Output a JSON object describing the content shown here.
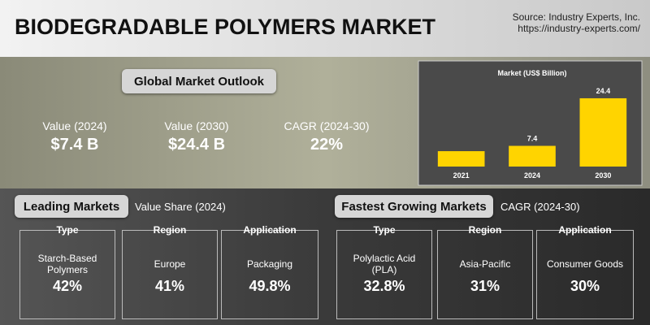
{
  "header": {
    "title": "BIODEGRADABLE POLYMERS MARKET",
    "source": "Source: Industry Experts, Inc.",
    "url": "https://industry-experts.com/"
  },
  "outlook": {
    "title": "Global Market Outlook",
    "stats": [
      {
        "label": "Value (2024)",
        "value": "$7.4 B"
      },
      {
        "label": "Value (2030)",
        "value": "$24.4 B"
      },
      {
        "label": "CAGR (2024-30)",
        "value": "22%"
      }
    ]
  },
  "chart_data": {
    "type": "bar",
    "title": "Market (US$ Billion)",
    "categories": [
      "2021",
      "2024",
      "2030"
    ],
    "values": [
      5.5,
      7.4,
      24.4
    ],
    "value_labels": [
      null,
      "7.4",
      "24.4"
    ],
    "color": "#ffd400",
    "ylim": [
      0,
      27
    ]
  },
  "leading": {
    "title": "Leading Markets",
    "subtitle": "Value Share (2024)",
    "cards": [
      {
        "label": "Type",
        "name": "Starch-Based Polymers",
        "value": "42%"
      },
      {
        "label": "Region",
        "name": "Europe",
        "value": "41%"
      },
      {
        "label": "Application",
        "name": "Packaging",
        "value": "49.8%"
      }
    ]
  },
  "fastest": {
    "title": "Fastest Growing Markets",
    "subtitle": "CAGR (2024-30)",
    "cards": [
      {
        "label": "Type",
        "name": "Polylactic Acid (PLA)",
        "value": "32.8%"
      },
      {
        "label": "Region",
        "name": "Asia-Pacific",
        "value": "31%"
      },
      {
        "label": "Application",
        "name": "Consumer Goods",
        "value": "30%"
      }
    ]
  }
}
